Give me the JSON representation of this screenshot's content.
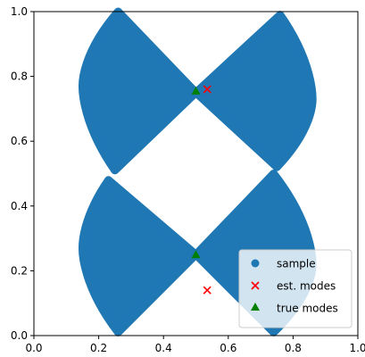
{
  "chart_data": {
    "type": "scatter",
    "xlim": [
      0.0,
      1.0
    ],
    "ylim": [
      0.0,
      1.0
    ],
    "x_ticks": [
      0.0,
      0.2,
      0.4,
      0.6,
      0.8,
      1.0
    ],
    "y_ticks": [
      0.0,
      0.2,
      0.4,
      0.6,
      0.8,
      1.0
    ],
    "x_tick_labels": [
      "0.0",
      "0.2",
      "0.4",
      "0.6",
      "0.8",
      "1.0"
    ],
    "y_tick_labels": [
      "0.0",
      "0.2",
      "0.4",
      "0.6",
      "0.8",
      "1.0"
    ],
    "grid": false,
    "legend_position": "bottom-right",
    "series": [
      {
        "name": "sample",
        "marker": "circle",
        "color": "#1f77b4",
        "regions": [
          {
            "shape": "left-lobe",
            "tip": [
              0.5,
              0.75
            ],
            "apex": [
              0.26,
              1.0
            ],
            "base": [
              0.25,
              0.51
            ],
            "outer_x": 0.15,
            "outer_y": 0.77
          },
          {
            "shape": "right-lobe",
            "tip": [
              0.5,
              0.75
            ],
            "apex": [
              0.76,
              0.99
            ],
            "base": [
              0.75,
              0.52
            ],
            "outer_x": 0.86,
            "outer_y": 0.73
          },
          {
            "shape": "left-lobe",
            "tip": [
              0.5,
              0.25
            ],
            "apex": [
              0.23,
              0.48
            ],
            "base": [
              0.26,
              0.01
            ],
            "outer_x": 0.15,
            "outer_y": 0.27
          },
          {
            "shape": "right-lobe",
            "tip": [
              0.5,
              0.25
            ],
            "apex": [
              0.74,
              0.5
            ],
            "base": [
              0.74,
              0.01
            ],
            "outer_x": 0.86,
            "outer_y": 0.22
          }
        ]
      },
      {
        "name": "est. modes",
        "marker": "x",
        "color": "#ff0000",
        "points": [
          [
            0.535,
            0.76
          ],
          [
            0.535,
            0.14
          ]
        ]
      },
      {
        "name": "true modes",
        "marker": "triangle",
        "color": "#008000",
        "points": [
          [
            0.5,
            0.755
          ],
          [
            0.5,
            0.25
          ]
        ]
      }
    ]
  }
}
